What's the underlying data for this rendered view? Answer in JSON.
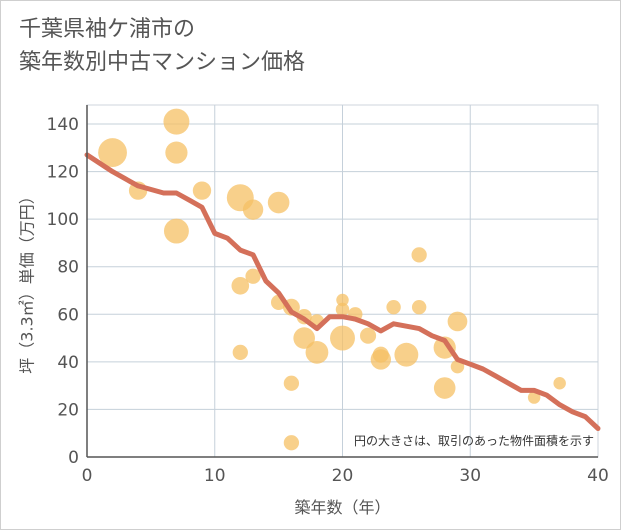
{
  "chart_data": {
    "type": "scatter",
    "title_line1": "千葉県袖ケ浦市の",
    "title_line2": "築年数別中古マンション価格",
    "xlabel": "築年数（年）",
    "ylabel": "坪（3.3㎡）単価（万円）",
    "note": "円の大きさは、取引のあった物件面積を示す",
    "xlim": [
      0,
      40
    ],
    "ylim": [
      0,
      148
    ],
    "xticks": [
      0,
      10,
      20,
      30,
      40
    ],
    "yticks": [
      0,
      20,
      40,
      60,
      80,
      100,
      120,
      140
    ],
    "grid": true,
    "colors": {
      "bubble": "#f5c064",
      "line": "#d4705a",
      "grid": "#c5d0da",
      "plot_border": "#cfd6dc"
    },
    "bubbles": [
      {
        "x": 2,
        "y": 128,
        "size": 3.2
      },
      {
        "x": 4,
        "y": 112,
        "size": 1.3
      },
      {
        "x": 7,
        "y": 141,
        "size": 2.6
      },
      {
        "x": 7,
        "y": 128,
        "size": 1.9
      },
      {
        "x": 7,
        "y": 95,
        "size": 2.4
      },
      {
        "x": 9,
        "y": 112,
        "size": 1.3
      },
      {
        "x": 12,
        "y": 109,
        "size": 2.8
      },
      {
        "x": 13,
        "y": 104,
        "size": 1.6
      },
      {
        "x": 15,
        "y": 107,
        "size": 1.8
      },
      {
        "x": 12,
        "y": 72,
        "size": 1.2
      },
      {
        "x": 13,
        "y": 76,
        "size": 0.9
      },
      {
        "x": 12,
        "y": 44,
        "size": 0.9
      },
      {
        "x": 15,
        "y": 65,
        "size": 0.9
      },
      {
        "x": 16,
        "y": 63,
        "size": 1.1
      },
      {
        "x": 17,
        "y": 59,
        "size": 0.9
      },
      {
        "x": 16,
        "y": 31,
        "size": 0.9
      },
      {
        "x": 17,
        "y": 50,
        "size": 1.8
      },
      {
        "x": 18,
        "y": 44,
        "size": 2.0
      },
      {
        "x": 18,
        "y": 57,
        "size": 0.8
      },
      {
        "x": 16,
        "y": 6,
        "size": 0.9
      },
      {
        "x": 20,
        "y": 66,
        "size": 0.6
      },
      {
        "x": 20,
        "y": 62,
        "size": 0.7
      },
      {
        "x": 20,
        "y": 50,
        "size": 2.4
      },
      {
        "x": 21,
        "y": 60,
        "size": 0.8
      },
      {
        "x": 22,
        "y": 51,
        "size": 1.0
      },
      {
        "x": 23,
        "y": 43,
        "size": 1.0
      },
      {
        "x": 23,
        "y": 41,
        "size": 1.6
      },
      {
        "x": 24,
        "y": 63,
        "size": 0.8
      },
      {
        "x": 25,
        "y": 43,
        "size": 2.2
      },
      {
        "x": 26,
        "y": 85,
        "size": 0.9
      },
      {
        "x": 26,
        "y": 63,
        "size": 0.8
      },
      {
        "x": 28,
        "y": 46,
        "size": 1.9
      },
      {
        "x": 28,
        "y": 29,
        "size": 1.8
      },
      {
        "x": 29,
        "y": 57,
        "size": 1.5
      },
      {
        "x": 29,
        "y": 38,
        "size": 0.7
      },
      {
        "x": 35,
        "y": 25,
        "size": 0.6
      },
      {
        "x": 37,
        "y": 31,
        "size": 0.6
      }
    ],
    "trend_line": {
      "x": [
        0,
        2,
        4,
        6,
        7,
        8,
        9,
        10,
        11,
        12,
        13,
        14,
        15,
        16,
        17,
        18,
        19,
        20,
        21,
        22,
        23,
        24,
        25,
        26,
        27,
        28,
        29,
        30,
        31,
        32,
        33,
        34,
        35,
        36,
        37,
        38,
        39,
        40
      ],
      "y": [
        127,
        120,
        114,
        111,
        111,
        108,
        105,
        94,
        92,
        87,
        85,
        74,
        69,
        61,
        58,
        54,
        59,
        59,
        58,
        56,
        53,
        56,
        55,
        54,
        51,
        49,
        41,
        39,
        37,
        34,
        31,
        28,
        28,
        26,
        22,
        19,
        17,
        12
      ]
    }
  }
}
